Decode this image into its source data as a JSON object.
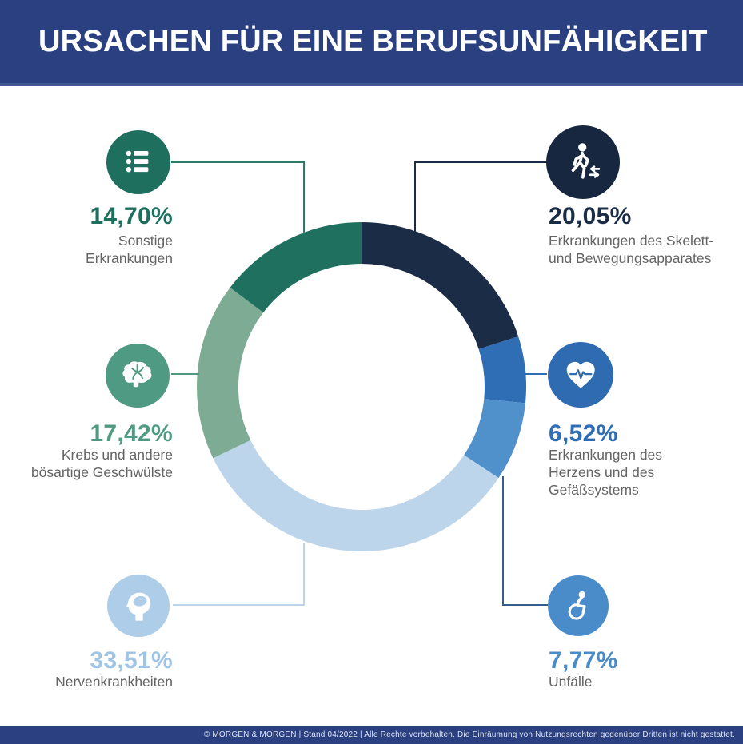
{
  "header": {
    "title": "URSACHEN FÜR EINE BERUFSUNFÄHIGKEIT",
    "bg_color": "#2A4080",
    "text_color": "#FFFFFF"
  },
  "footer": {
    "text": "© MORGEN & MORGEN  | Stand 04/2022 | Alle Rechte vorbehalten. Die Einräumung von Nutzungsrechten gegenüber Dritten ist nicht gestattet.",
    "bg_color": "#2A4080"
  },
  "styles": {
    "label_color": "#646464",
    "background_color": "#FFFFFF"
  },
  "chart_data": {
    "type": "pie",
    "donut": true,
    "title": "Ursachen für eine Berufsunfähigkeit",
    "unit": "%",
    "start_angle_deg": 0,
    "direction": "clockwise",
    "legend_position": "callouts-around-chart",
    "segments": [
      {
        "id": "skelett",
        "label": "Erkrankungen des Skelett- und Bewegungsapparates",
        "value": 20.05,
        "color": "#1B2C47"
      },
      {
        "id": "herz",
        "label": "Erkrankungen des Herzens und des Gefäßsystems",
        "value": 6.52,
        "color": "#2F6DB4"
      },
      {
        "id": "unfaelle",
        "label": "Unfälle",
        "value": 7.77,
        "color": "#5090CB"
      },
      {
        "id": "nerven",
        "label": "Nervenkrankheiten",
        "value": 33.51,
        "color": "#BCD5EA"
      },
      {
        "id": "krebs",
        "label": "Krebs und andere bösartige Geschwülste",
        "value": 17.42,
        "color": "#7DAB93"
      },
      {
        "id": "sonstige",
        "label": "Sonstige Erkrankungen",
        "value": 14.7,
        "color": "#20705F"
      }
    ]
  },
  "callouts": [
    {
      "id": "sonstige",
      "percent": "14,70%",
      "label_lines": [
        "Sonstige",
        "Erkrankungen"
      ],
      "accent_color": "#1D6F5E",
      "icon": "list-icon",
      "icon_color": "#1F6F5F",
      "connector_color": "#2B7B68"
    },
    {
      "id": "skelett",
      "percent": "20,05%",
      "label_lines": [
        "Erkrankungen des Skelett-",
        "und Bewegungsapparates"
      ],
      "accent_color": "#1B2C47",
      "icon": "walking-person-icon",
      "icon_color": "#16273F",
      "connector_color": "#1B2C47"
    },
    {
      "id": "krebs",
      "percent": "17,42%",
      "label_lines": [
        "Krebs und andere",
        "bösartige Geschwülste"
      ],
      "accent_color": "#4E9A82",
      "icon": "brain-icon",
      "icon_color": "#4E9A82",
      "connector_color": "#4F967C"
    },
    {
      "id": "herz",
      "percent": "6,52%",
      "label_lines": [
        "Erkrankungen des",
        "Herzens und des",
        "Gefäßsystems"
      ],
      "accent_color": "#2F6DB4",
      "icon": "heart-pulse-icon",
      "icon_color": "#2E6BB1",
      "connector_color": "#2F6DB4"
    },
    {
      "id": "nerven",
      "percent": "33,51%",
      "label_lines": [
        "Nervenkrankheiten"
      ],
      "accent_color": "#A0C4E4",
      "icon": "head-brain-icon",
      "icon_color": "#AECDE9",
      "connector_color": "#BCD5EA"
    },
    {
      "id": "unfaelle",
      "percent": "7,77%",
      "label_lines": [
        "Unfälle"
      ],
      "accent_color": "#4A8CC9",
      "icon": "wheelchair-icon",
      "icon_color": "#4A8CC9",
      "connector_color": "#35608D"
    }
  ]
}
